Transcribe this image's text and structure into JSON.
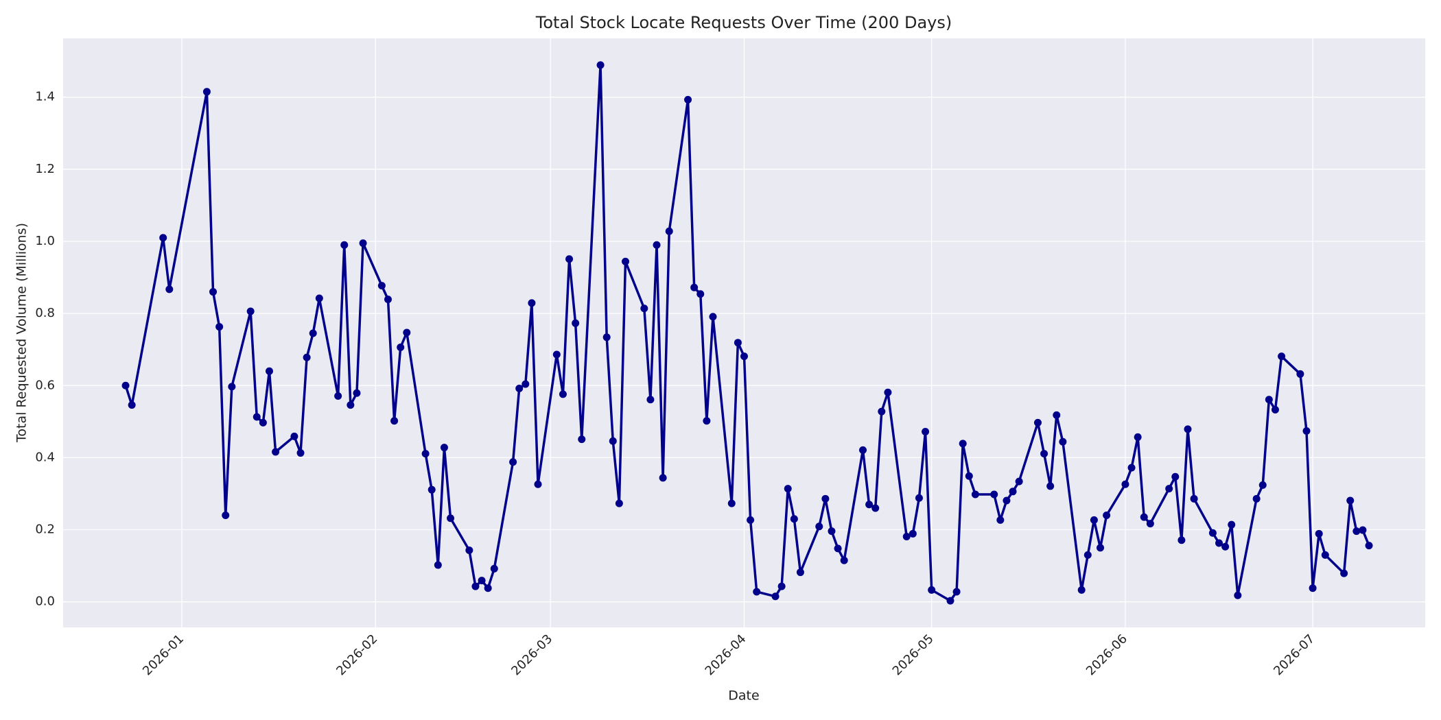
{
  "chart_data": {
    "type": "line",
    "title": "Total Stock Locate Requests Over Time (200 Days)",
    "xlabel": "Date",
    "ylabel": "Total Requested Volume (Millions)",
    "color": "#00008b",
    "grid": true,
    "x": [
      "2025-12-23",
      "2025-12-24",
      "2025-12-29",
      "2025-12-30",
      "2026-01-05",
      "2026-01-06",
      "2026-01-07",
      "2026-01-08",
      "2026-01-09",
      "2026-01-12",
      "2026-01-13",
      "2026-01-14",
      "2026-01-15",
      "2026-01-16",
      "2026-01-19",
      "2026-01-20",
      "2026-01-21",
      "2026-01-22",
      "2026-01-23",
      "2026-01-26",
      "2026-01-27",
      "2026-01-28",
      "2026-01-29",
      "2026-01-30",
      "2026-02-02",
      "2026-02-03",
      "2026-02-04",
      "2026-02-05",
      "2026-02-06",
      "2026-02-09",
      "2026-02-10",
      "2026-02-11",
      "2026-02-12",
      "2026-02-13",
      "2026-02-16",
      "2026-02-17",
      "2026-02-18",
      "2026-02-19",
      "2026-02-20",
      "2026-02-23",
      "2026-02-24",
      "2026-02-25",
      "2026-02-26",
      "2026-02-27",
      "2026-03-02",
      "2026-03-03",
      "2026-03-04",
      "2026-03-05",
      "2026-03-06",
      "2026-03-09",
      "2026-03-10",
      "2026-03-11",
      "2026-03-12",
      "2026-03-13",
      "2026-03-16",
      "2026-03-17",
      "2026-03-18",
      "2026-03-19",
      "2026-03-20",
      "2026-03-23",
      "2026-03-24",
      "2026-03-25",
      "2026-03-26",
      "2026-03-27",
      "2026-03-30",
      "2026-03-31",
      "2026-04-01",
      "2026-04-02",
      "2026-04-03",
      "2026-04-06",
      "2026-04-07",
      "2026-04-08",
      "2026-04-09",
      "2026-04-10",
      "2026-04-13",
      "2026-04-14",
      "2026-04-15",
      "2026-04-16",
      "2026-04-17",
      "2026-04-20",
      "2026-04-21",
      "2026-04-22",
      "2026-04-23",
      "2026-04-24",
      "2026-04-27",
      "2026-04-28",
      "2026-04-29",
      "2026-04-30",
      "2026-05-01",
      "2026-05-04",
      "2026-05-05",
      "2026-05-06",
      "2026-05-07",
      "2026-05-08",
      "2026-05-11",
      "2026-05-12",
      "2026-05-13",
      "2026-05-14",
      "2026-05-15",
      "2026-05-18",
      "2026-05-19",
      "2026-05-20",
      "2026-05-21",
      "2026-05-22",
      "2026-05-25",
      "2026-05-26",
      "2026-05-27",
      "2026-05-28",
      "2026-05-29",
      "2026-06-01",
      "2026-06-02",
      "2026-06-03",
      "2026-06-04",
      "2026-06-05",
      "2026-06-08",
      "2026-06-09",
      "2026-06-10",
      "2026-06-11",
      "2026-06-12",
      "2026-06-15",
      "2026-06-16",
      "2026-06-17",
      "2026-06-18",
      "2026-06-19",
      "2026-06-22",
      "2026-06-23",
      "2026-06-24",
      "2026-06-25",
      "2026-06-26",
      "2026-06-29",
      "2026-06-30",
      "2026-07-01",
      "2026-07-02",
      "2026-07-03",
      "2026-07-06",
      "2026-07-07",
      "2026-07-08",
      "2026-07-09",
      "2026-07-10"
    ],
    "values": [
      0.6,
      0.546,
      1.01,
      0.867,
      1.415,
      0.86,
      0.763,
      0.24,
      0.597,
      0.806,
      0.513,
      0.497,
      0.64,
      0.416,
      0.459,
      0.413,
      0.678,
      0.745,
      0.842,
      0.571,
      0.99,
      0.546,
      0.579,
      0.995,
      0.877,
      0.839,
      0.502,
      0.706,
      0.747,
      0.411,
      0.311,
      0.102,
      0.428,
      0.232,
      0.143,
      0.043,
      0.059,
      0.038,
      0.092,
      0.388,
      0.592,
      0.604,
      0.829,
      0.326,
      0.686,
      0.576,
      0.951,
      0.773,
      0.451,
      1.489,
      0.734,
      0.446,
      0.273,
      0.944,
      0.814,
      0.561,
      0.99,
      0.344,
      1.028,
      1.393,
      0.872,
      0.854,
      0.502,
      0.791,
      0.273,
      0.719,
      0.681,
      0.227,
      0.028,
      0.015,
      0.043,
      0.314,
      0.23,
      0.082,
      0.209,
      0.286,
      0.196,
      0.148,
      0.115,
      0.421,
      0.27,
      0.26,
      0.528,
      0.581,
      0.181,
      0.189,
      0.288,
      0.472,
      0.033,
      0.003,
      0.028,
      0.439,
      0.349,
      0.298,
      0.298,
      0.227,
      0.281,
      0.306,
      0.334,
      0.497,
      0.411,
      0.321,
      0.518,
      0.444,
      0.033,
      0.13,
      0.227,
      0.15,
      0.24,
      0.326,
      0.372,
      0.457,
      0.235,
      0.217,
      0.314,
      0.347,
      0.171,
      0.479,
      0.286,
      0.191,
      0.163,
      0.153,
      0.214,
      0.018,
      0.286,
      0.324,
      0.561,
      0.533,
      0.681,
      0.632,
      0.474,
      0.038,
      0.189,
      0.13,
      0.079,
      0.281,
      0.196,
      0.199,
      0.156
    ],
    "xlim": [
      "2025-12-13",
      "2026-07-19"
    ],
    "xticks": [
      "2026-01",
      "2026-02",
      "2026-03",
      "2026-04",
      "2026-05",
      "2026-06",
      "2026-07"
    ],
    "ylim": [
      -0.071,
      1.563
    ],
    "yticks": [
      {
        "value": 0,
        "label": "0.0"
      },
      0.2,
      0.4,
      0.6,
      0.8,
      {
        "value": 1,
        "label": "1.0"
      },
      1.2,
      1.4
    ]
  }
}
